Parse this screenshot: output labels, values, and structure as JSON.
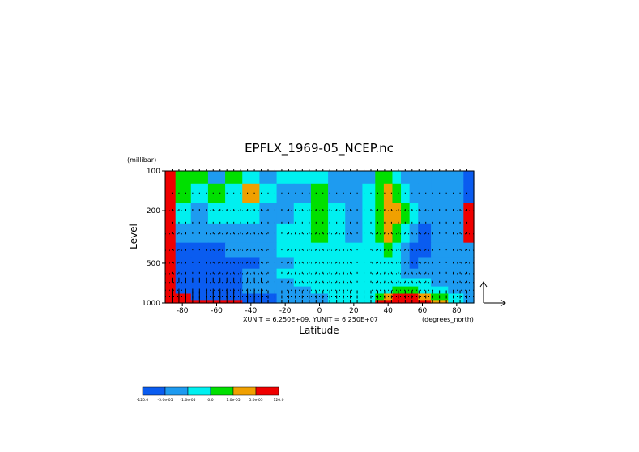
{
  "chart_data": {
    "type": "heatmap",
    "title": "EPFLX_1969-05_NCEP.nc",
    "xlabel": "Latitude",
    "x_units": "(degrees_north)",
    "ylabel": "Level",
    "y_units": "(millibar)",
    "xlim": [
      -90,
      90
    ],
    "ylim": [
      1000,
      100
    ],
    "y_scale": "log",
    "x_ticks": [
      "-80",
      "-60",
      "-40",
      "-20",
      "0",
      "20",
      "40",
      "60",
      "80"
    ],
    "x_tick_values": [
      -80,
      -60,
      -40,
      -20,
      0,
      20,
      40,
      60,
      80
    ],
    "y_ticks": [
      "100",
      "200",
      "500",
      "1000"
    ],
    "y_tick_values": [
      100,
      200,
      500,
      1000
    ],
    "vector_scale_text": "XUNIT = 6.250E+09, YUNIT = 6.250E+07",
    "colorbar": {
      "labels": [
        "-120.0",
        "-5.0e-05",
        "-1.0e-05",
        "0.0",
        "1.0e-05",
        "5.0e-05",
        "120.0"
      ],
      "colors": [
        "#0a5cf0",
        "#1e9bf0",
        "#00f0f0",
        "#00e000",
        "#f0a000",
        "#f00000"
      ]
    },
    "class_colors": [
      "#0a5cf0",
      "#1e9bf0",
      "#00f0f0",
      "#00e000",
      "#f0a000",
      "#f00000"
    ],
    "class_columns": [
      -88,
      -80,
      -70,
      -60,
      -50,
      -40,
      -30,
      -20,
      -10,
      0,
      10,
      20,
      30,
      35,
      40,
      45,
      50,
      55,
      60,
      70,
      80,
      88
    ],
    "class_rows": [
      100,
      150,
      200,
      300,
      400,
      500,
      600,
      700,
      800,
      900,
      1000
    ],
    "class_grid": [
      [
        5,
        3,
        3,
        1,
        3,
        2,
        1,
        2,
        2,
        2,
        1,
        1,
        1,
        3,
        3,
        2,
        1,
        1,
        1,
        1,
        1,
        0
      ],
      [
        5,
        3,
        2,
        3,
        2,
        4,
        2,
        1,
        1,
        3,
        1,
        1,
        2,
        3,
        4,
        3,
        2,
        1,
        1,
        1,
        1,
        0
      ],
      [
        5,
        2,
        1,
        2,
        2,
        2,
        1,
        1,
        2,
        3,
        2,
        1,
        2,
        3,
        4,
        4,
        3,
        2,
        1,
        1,
        1,
        5
      ],
      [
        5,
        1,
        1,
        1,
        1,
        1,
        1,
        2,
        2,
        3,
        2,
        1,
        2,
        3,
        4,
        3,
        2,
        1,
        0,
        1,
        1,
        5
      ],
      [
        5,
        0,
        0,
        0,
        1,
        1,
        1,
        2,
        2,
        2,
        2,
        2,
        2,
        2,
        3,
        2,
        1,
        0,
        0,
        1,
        1,
        1
      ],
      [
        5,
        0,
        0,
        0,
        0,
        0,
        1,
        1,
        2,
        2,
        2,
        2,
        2,
        2,
        2,
        2,
        1,
        0,
        1,
        1,
        1,
        1
      ],
      [
        5,
        0,
        0,
        0,
        0,
        1,
        1,
        2,
        2,
        2,
        2,
        2,
        2,
        2,
        2,
        2,
        1,
        1,
        1,
        1,
        1,
        1
      ],
      [
        5,
        0,
        0,
        0,
        0,
        1,
        1,
        1,
        2,
        2,
        2,
        2,
        2,
        2,
        2,
        2,
        2,
        2,
        2,
        1,
        1,
        1
      ],
      [
        5,
        0,
        0,
        0,
        0,
        1,
        1,
        1,
        1,
        2,
        2,
        2,
        2,
        2,
        2,
        3,
        3,
        3,
        2,
        2,
        1,
        1
      ],
      [
        5,
        5,
        0,
        0,
        0,
        0,
        0,
        1,
        1,
        1,
        2,
        2,
        2,
        3,
        4,
        5,
        5,
        5,
        4,
        3,
        2,
        1
      ],
      [
        5,
        5,
        5,
        5,
        5,
        0,
        0,
        1,
        1,
        1,
        2,
        2,
        2,
        5,
        5,
        5,
        5,
        5,
        5,
        4,
        2,
        1
      ]
    ],
    "vector_columns": [
      -86,
      -82,
      -78,
      -74,
      -70,
      -66,
      -62,
      -58,
      -54,
      -50,
      -46,
      -42,
      -38,
      -34,
      -30,
      -26,
      -22,
      -18,
      -14,
      -10,
      -6,
      -2,
      2,
      6,
      10,
      14,
      18,
      22,
      26,
      30,
      34,
      38,
      42,
      46,
      50,
      54,
      58,
      62,
      66,
      70,
      74,
      78,
      82,
      86
    ],
    "vector_rows": [
      100,
      150,
      200,
      250,
      300,
      400,
      500,
      600,
      700,
      850,
      925,
      1000
    ]
  }
}
